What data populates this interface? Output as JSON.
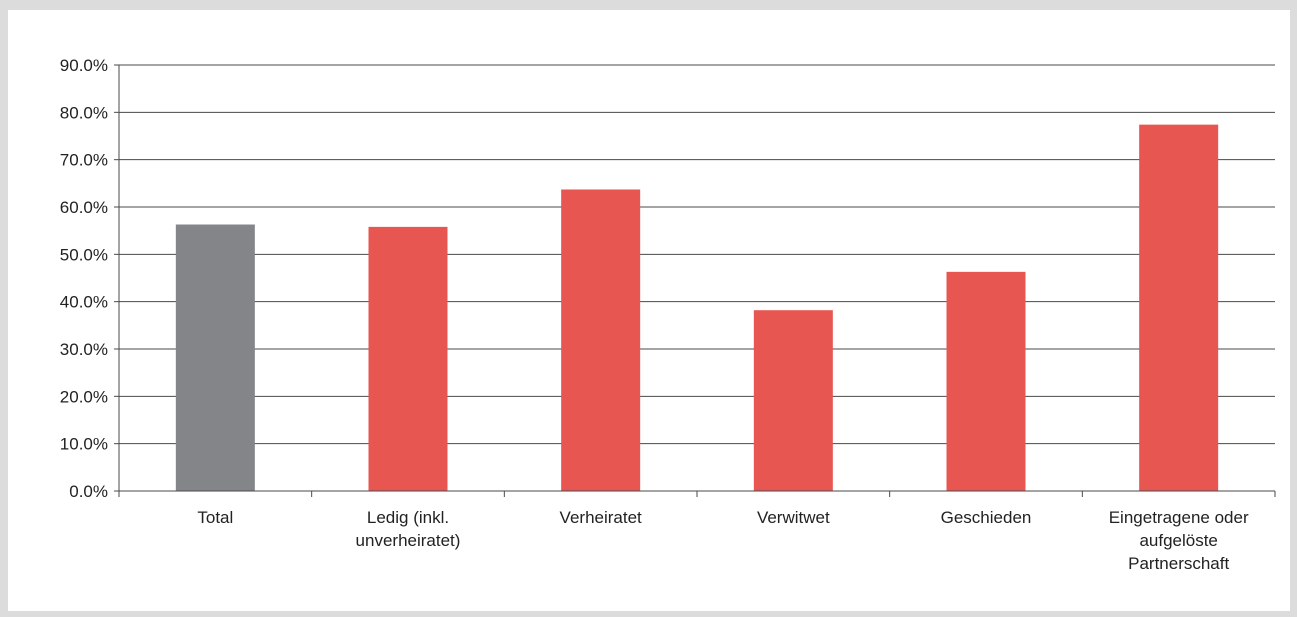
{
  "chart_data": {
    "type": "bar",
    "categories": [
      [
        "Total"
      ],
      [
        "Ledig (inkl.",
        "unverheiratet)"
      ],
      [
        "Verheiratet"
      ],
      [
        "Verwitwet"
      ],
      [
        "Geschieden"
      ],
      [
        "Eingetragene oder",
        "aufgelöste",
        "Partnerschaft"
      ]
    ],
    "values": [
      56.3,
      55.8,
      63.7,
      38.2,
      46.3,
      77.4
    ],
    "bar_colors": [
      "#848589",
      "#e85651",
      "#e85651",
      "#e85651",
      "#e85651",
      "#e85651"
    ],
    "title": "",
    "xlabel": "",
    "ylabel": "",
    "ylim": [
      0,
      90
    ],
    "yticks": [
      "0.0%",
      "10.0%",
      "20.0%",
      "30.0%",
      "40.0%",
      "50.0%",
      "60.0%",
      "70.0%",
      "80.0%",
      "90.0%"
    ],
    "grid": true,
    "legend": "none"
  },
  "colors": {
    "frame": "#dcdcdc",
    "gridline": "#4a4a4a",
    "text": "#222222"
  }
}
